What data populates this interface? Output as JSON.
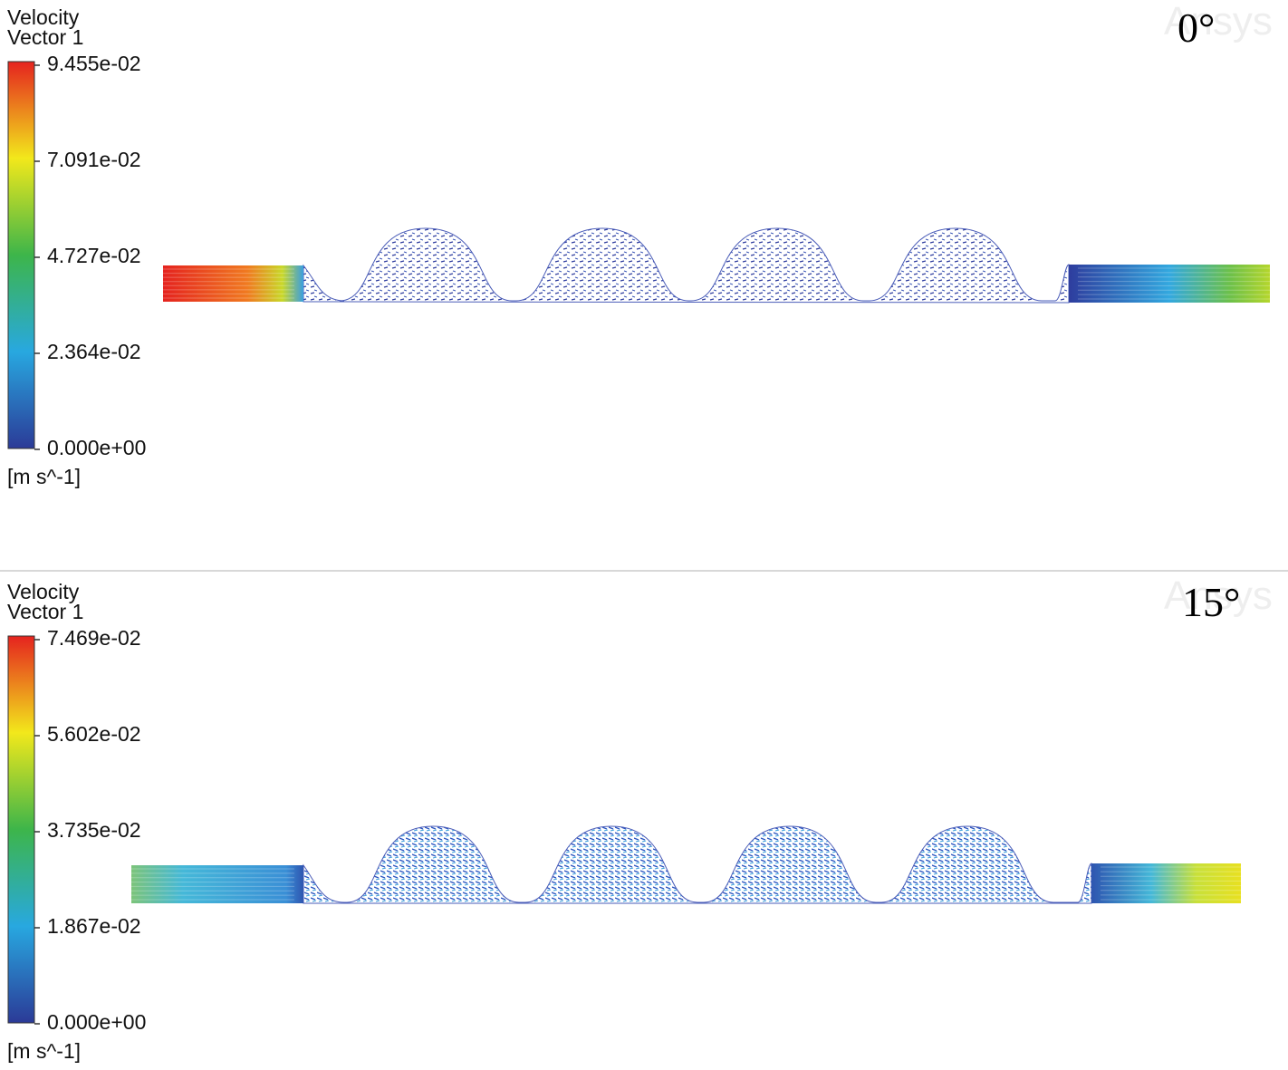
{
  "panels": [
    {
      "legend_title": [
        "Velocity",
        "Vector 1"
      ],
      "ticks": [
        "9.455e-02",
        "7.091e-02",
        "4.727e-02",
        "2.364e-02",
        "0.000e+00"
      ],
      "unit": "[m s^-1]",
      "angle": "0°",
      "watermark": "Ansys"
    },
    {
      "legend_title": [
        "Velocity",
        "Vector 1"
      ],
      "ticks": [
        "7.469e-02",
        "5.602e-02",
        "3.735e-02",
        "1.867e-02",
        "0.000e+00"
      ],
      "unit": "[m s^-1]",
      "angle": "15°",
      "watermark": "Ansys"
    }
  ]
}
